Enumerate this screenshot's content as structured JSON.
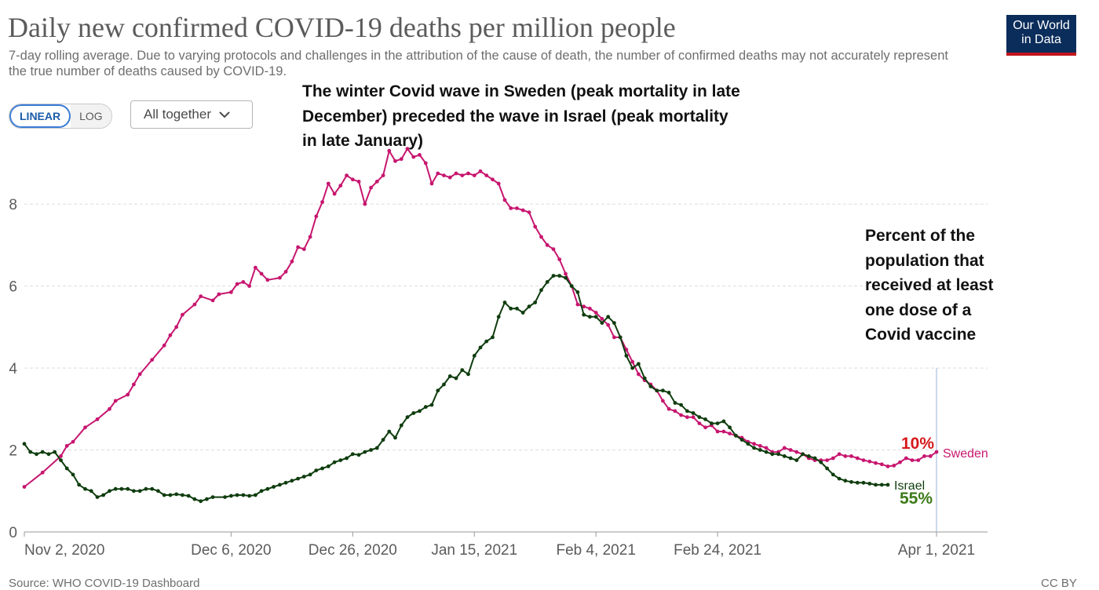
{
  "header": {
    "title": "Daily new confirmed COVID-19 deaths per million people",
    "subtitle": "7-day rolling average. Due to varying protocols and challenges in the attribution of the cause of death, the number of confirmed deaths may not accurately represent the true number of deaths caused by COVID-19.",
    "logo_line1": "Our World",
    "logo_line2": "in Data"
  },
  "controls": {
    "linear_label": "LINEAR",
    "log_label": "LOG",
    "dropdown_label": "All together",
    "dropdown_icon": "chevron-down-icon"
  },
  "annotations": {
    "wave_note": "The winter Covid wave in Sweden (peak mortality in late December) preceded the wave in Israel (peak mortality in late January)",
    "vaccine_note": "Percent of the population that received at least one dose of a Covid vaccine",
    "sweden_pct": "10%",
    "israel_pct": "55%"
  },
  "footer": {
    "source": "Source: WHO COVID-19 Dashboard",
    "license": "CC BY"
  },
  "colors": {
    "sweden": "#c7166f",
    "israel": "#0f3d0f",
    "grid": "#dddddd",
    "vline": "#a9c0e0"
  },
  "chart_data": {
    "type": "line",
    "title": "Daily new confirmed COVID-19 deaths per million people",
    "ylim": [
      0,
      9.4
    ],
    "yticks": [
      0,
      2,
      4,
      6,
      8
    ],
    "xlim_days": [
      0,
      150
    ],
    "x_ticks": [
      {
        "day": 0,
        "label": "Nov 2, 2020"
      },
      {
        "day": 34,
        "label": "Dec 6, 2020"
      },
      {
        "day": 54,
        "label": "Dec 26, 2020"
      },
      {
        "day": 74,
        "label": "Jan 15, 2021"
      },
      {
        "day": 94,
        "label": "Feb 4, 2021"
      },
      {
        "day": 114,
        "label": "Feb 24, 2021"
      },
      {
        "day": 150,
        "label": "Apr 1, 2021"
      }
    ],
    "marker_day": 150,
    "series": [
      {
        "name": "Sweden",
        "points": [
          [
            0,
            1.1
          ],
          [
            3,
            1.45
          ],
          [
            6,
            1.85
          ],
          [
            7,
            2.1
          ],
          [
            8,
            2.2
          ],
          [
            10,
            2.55
          ],
          [
            12,
            2.75
          ],
          [
            14,
            3.0
          ],
          [
            15,
            3.2
          ],
          [
            17,
            3.35
          ],
          [
            18,
            3.6
          ],
          [
            19,
            3.85
          ],
          [
            21,
            4.2
          ],
          [
            23,
            4.55
          ],
          [
            24,
            4.8
          ],
          [
            25,
            5.0
          ],
          [
            26,
            5.3
          ],
          [
            28,
            5.55
          ],
          [
            29,
            5.75
          ],
          [
            31,
            5.65
          ],
          [
            32,
            5.8
          ],
          [
            34,
            5.85
          ],
          [
            35,
            6.05
          ],
          [
            36,
            6.1
          ],
          [
            37,
            6.0
          ],
          [
            38,
            6.45
          ],
          [
            39,
            6.3
          ],
          [
            40,
            6.15
          ],
          [
            42,
            6.2
          ],
          [
            43,
            6.35
          ],
          [
            44,
            6.6
          ],
          [
            45,
            6.95
          ],
          [
            46,
            6.9
          ],
          [
            47,
            7.2
          ],
          [
            48,
            7.7
          ],
          [
            49,
            8.05
          ],
          [
            50,
            8.5
          ],
          [
            51,
            8.25
          ],
          [
            52,
            8.45
          ],
          [
            53,
            8.7
          ],
          [
            54,
            8.6
          ],
          [
            55,
            8.55
          ],
          [
            56,
            8.0
          ],
          [
            57,
            8.4
          ],
          [
            58,
            8.55
          ],
          [
            59,
            8.7
          ],
          [
            60,
            9.3
          ],
          [
            61,
            9.05
          ],
          [
            62,
            9.1
          ],
          [
            63,
            9.35
          ],
          [
            64,
            9.15
          ],
          [
            65,
            9.2
          ],
          [
            66,
            9.0
          ],
          [
            67,
            8.5
          ],
          [
            68,
            8.75
          ],
          [
            69,
            8.7
          ],
          [
            70,
            8.65
          ],
          [
            71,
            8.75
          ],
          [
            72,
            8.7
          ],
          [
            73,
            8.75
          ],
          [
            74,
            8.7
          ],
          [
            75,
            8.8
          ],
          [
            76,
            8.7
          ],
          [
            77,
            8.6
          ],
          [
            78,
            8.5
          ],
          [
            79,
            8.1
          ],
          [
            80,
            7.9
          ],
          [
            81,
            7.9
          ],
          [
            82,
            7.85
          ],
          [
            83,
            7.8
          ],
          [
            84,
            7.45
          ],
          [
            85,
            7.2
          ],
          [
            86,
            7.0
          ],
          [
            87,
            6.9
          ],
          [
            88,
            6.65
          ],
          [
            89,
            6.3
          ],
          [
            90,
            6.0
          ],
          [
            91,
            5.55
          ],
          [
            92,
            5.5
          ],
          [
            93,
            5.45
          ],
          [
            94,
            5.35
          ],
          [
            95,
            5.2
          ],
          [
            96,
            5.05
          ],
          [
            97,
            4.75
          ],
          [
            98,
            4.75
          ],
          [
            99,
            4.45
          ],
          [
            100,
            4.15
          ],
          [
            101,
            3.85
          ],
          [
            102,
            3.7
          ],
          [
            103,
            3.6
          ],
          [
            104,
            3.45
          ],
          [
            105,
            3.2
          ],
          [
            106,
            3.0
          ],
          [
            107,
            2.95
          ],
          [
            108,
            2.85
          ],
          [
            109,
            2.8
          ],
          [
            110,
            2.8
          ],
          [
            111,
            2.65
          ],
          [
            112,
            2.55
          ],
          [
            113,
            2.6
          ],
          [
            114,
            2.45
          ],
          [
            115,
            2.45
          ],
          [
            116,
            2.4
          ],
          [
            117,
            2.35
          ],
          [
            118,
            2.3
          ],
          [
            119,
            2.2
          ],
          [
            120,
            2.15
          ],
          [
            121,
            2.1
          ],
          [
            122,
            2.05
          ],
          [
            123,
            1.95
          ],
          [
            124,
            1.95
          ],
          [
            125,
            2.05
          ],
          [
            126,
            2.0
          ],
          [
            127,
            1.95
          ],
          [
            128,
            1.9
          ],
          [
            129,
            1.8
          ],
          [
            130,
            1.75
          ],
          [
            131,
            1.75
          ],
          [
            132,
            1.75
          ],
          [
            133,
            1.8
          ],
          [
            134,
            1.9
          ],
          [
            135,
            1.85
          ],
          [
            136,
            1.85
          ],
          [
            137,
            1.8
          ],
          [
            138,
            1.75
          ],
          [
            139,
            1.72
          ],
          [
            140,
            1.68
          ],
          [
            141,
            1.65
          ],
          [
            142,
            1.6
          ],
          [
            143,
            1.62
          ],
          [
            144,
            1.7
          ],
          [
            145,
            1.8
          ],
          [
            146,
            1.75
          ],
          [
            147,
            1.75
          ],
          [
            148,
            1.85
          ],
          [
            149,
            1.85
          ],
          [
            150,
            1.95
          ]
        ]
      },
      {
        "name": "Israel",
        "points": [
          [
            0,
            2.15
          ],
          [
            1,
            1.95
          ],
          [
            2,
            1.9
          ],
          [
            3,
            1.95
          ],
          [
            4,
            1.9
          ],
          [
            5,
            1.95
          ],
          [
            6,
            1.75
          ],
          [
            7,
            1.55
          ],
          [
            8,
            1.4
          ],
          [
            9,
            1.15
          ],
          [
            10,
            1.05
          ],
          [
            11,
            1.0
          ],
          [
            12,
            0.85
          ],
          [
            13,
            0.9
          ],
          [
            14,
            1.0
          ],
          [
            15,
            1.05
          ],
          [
            16,
            1.05
          ],
          [
            17,
            1.05
          ],
          [
            18,
            1.0
          ],
          [
            19,
            1.0
          ],
          [
            20,
            1.05
          ],
          [
            21,
            1.05
          ],
          [
            22,
            1.0
          ],
          [
            23,
            0.9
          ],
          [
            24,
            0.9
          ],
          [
            25,
            0.92
          ],
          [
            26,
            0.9
          ],
          [
            27,
            0.88
          ],
          [
            28,
            0.8
          ],
          [
            29,
            0.75
          ],
          [
            30,
            0.8
          ],
          [
            31,
            0.85
          ],
          [
            33,
            0.85
          ],
          [
            34,
            0.88
          ],
          [
            35,
            0.9
          ],
          [
            36,
            0.9
          ],
          [
            37,
            0.88
          ],
          [
            38,
            0.9
          ],
          [
            39,
            1.0
          ],
          [
            40,
            1.05
          ],
          [
            41,
            1.1
          ],
          [
            42,
            1.15
          ],
          [
            43,
            1.2
          ],
          [
            44,
            1.25
          ],
          [
            45,
            1.3
          ],
          [
            46,
            1.35
          ],
          [
            47,
            1.4
          ],
          [
            48,
            1.5
          ],
          [
            49,
            1.55
          ],
          [
            50,
            1.6
          ],
          [
            51,
            1.7
          ],
          [
            52,
            1.75
          ],
          [
            53,
            1.8
          ],
          [
            54,
            1.9
          ],
          [
            55,
            1.88
          ],
          [
            56,
            1.95
          ],
          [
            57,
            2.0
          ],
          [
            58,
            2.05
          ],
          [
            59,
            2.25
          ],
          [
            60,
            2.45
          ],
          [
            61,
            2.3
          ],
          [
            62,
            2.6
          ],
          [
            63,
            2.8
          ],
          [
            64,
            2.9
          ],
          [
            65,
            2.95
          ],
          [
            66,
            3.05
          ],
          [
            67,
            3.1
          ],
          [
            68,
            3.45
          ],
          [
            69,
            3.6
          ],
          [
            70,
            3.8
          ],
          [
            71,
            3.75
          ],
          [
            72,
            3.95
          ],
          [
            73,
            3.85
          ],
          [
            74,
            4.3
          ],
          [
            75,
            4.5
          ],
          [
            76,
            4.65
          ],
          [
            77,
            4.75
          ],
          [
            78,
            5.25
          ],
          [
            79,
            5.6
          ],
          [
            80,
            5.45
          ],
          [
            81,
            5.45
          ],
          [
            82,
            5.35
          ],
          [
            83,
            5.5
          ],
          [
            84,
            5.6
          ],
          [
            85,
            5.9
          ],
          [
            86,
            6.1
          ],
          [
            87,
            6.25
          ],
          [
            88,
            6.25
          ],
          [
            89,
            6.2
          ],
          [
            90,
            6.0
          ],
          [
            91,
            5.85
          ],
          [
            92,
            5.3
          ],
          [
            93,
            5.25
          ],
          [
            94,
            5.25
          ],
          [
            95,
            5.1
          ],
          [
            96,
            5.25
          ],
          [
            97,
            5.1
          ],
          [
            98,
            4.75
          ],
          [
            99,
            4.3
          ],
          [
            100,
            4.0
          ],
          [
            101,
            4.1
          ],
          [
            102,
            3.75
          ],
          [
            103,
            3.55
          ],
          [
            104,
            3.45
          ],
          [
            105,
            3.45
          ],
          [
            106,
            3.4
          ],
          [
            107,
            3.15
          ],
          [
            108,
            3.1
          ],
          [
            109,
            2.95
          ],
          [
            110,
            2.9
          ],
          [
            111,
            2.8
          ],
          [
            112,
            2.75
          ],
          [
            113,
            2.65
          ],
          [
            114,
            2.65
          ],
          [
            115,
            2.7
          ],
          [
            116,
            2.55
          ],
          [
            117,
            2.35
          ],
          [
            118,
            2.25
          ],
          [
            119,
            2.15
          ],
          [
            120,
            2.05
          ],
          [
            121,
            2.0
          ],
          [
            122,
            1.95
          ],
          [
            123,
            1.9
          ],
          [
            124,
            1.9
          ],
          [
            125,
            1.85
          ],
          [
            126,
            1.8
          ],
          [
            127,
            1.75
          ],
          [
            128,
            1.9
          ],
          [
            129,
            1.85
          ],
          [
            130,
            1.8
          ],
          [
            131,
            1.7
          ],
          [
            132,
            1.55
          ],
          [
            133,
            1.4
          ],
          [
            134,
            1.3
          ],
          [
            135,
            1.25
          ],
          [
            136,
            1.22
          ],
          [
            137,
            1.2
          ],
          [
            138,
            1.2
          ],
          [
            139,
            1.18
          ],
          [
            140,
            1.15
          ],
          [
            141,
            1.15
          ],
          [
            142,
            1.15
          ]
        ]
      }
    ]
  }
}
